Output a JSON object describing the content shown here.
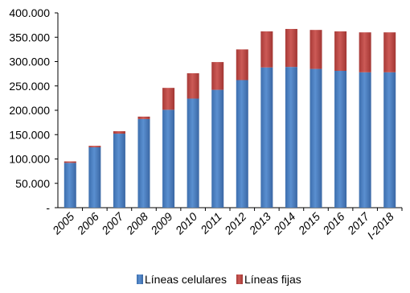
{
  "chart_data": {
    "type": "bar",
    "stacked": true,
    "categories": [
      "2005",
      "2006",
      "2007",
      "2008",
      "2009",
      "2010",
      "2011",
      "2012",
      "2013",
      "2014",
      "2015",
      "2016",
      "2017",
      "I-2018"
    ],
    "series": [
      {
        "name": "Líneas celulares",
        "color": "#4a7ebb",
        "values": [
          92000,
          124000,
          152000,
          182000,
          201000,
          224000,
          242000,
          262000,
          288000,
          289000,
          285000,
          281000,
          278000,
          278000
        ]
      },
      {
        "name": "Líneas fijas",
        "color": "#be4b48",
        "values": [
          3000,
          3000,
          5000,
          5000,
          45000,
          52000,
          57000,
          63000,
          74000,
          78000,
          80000,
          81000,
          82000,
          82000
        ]
      }
    ],
    "y_ticks": [
      "-",
      "50.000",
      "100.000",
      "150.000",
      "200.000",
      "250.000",
      "300.000",
      "350.000",
      "400.000"
    ],
    "ylim": [
      0,
      400000
    ],
    "grid": false,
    "legend_position": "bottom"
  }
}
